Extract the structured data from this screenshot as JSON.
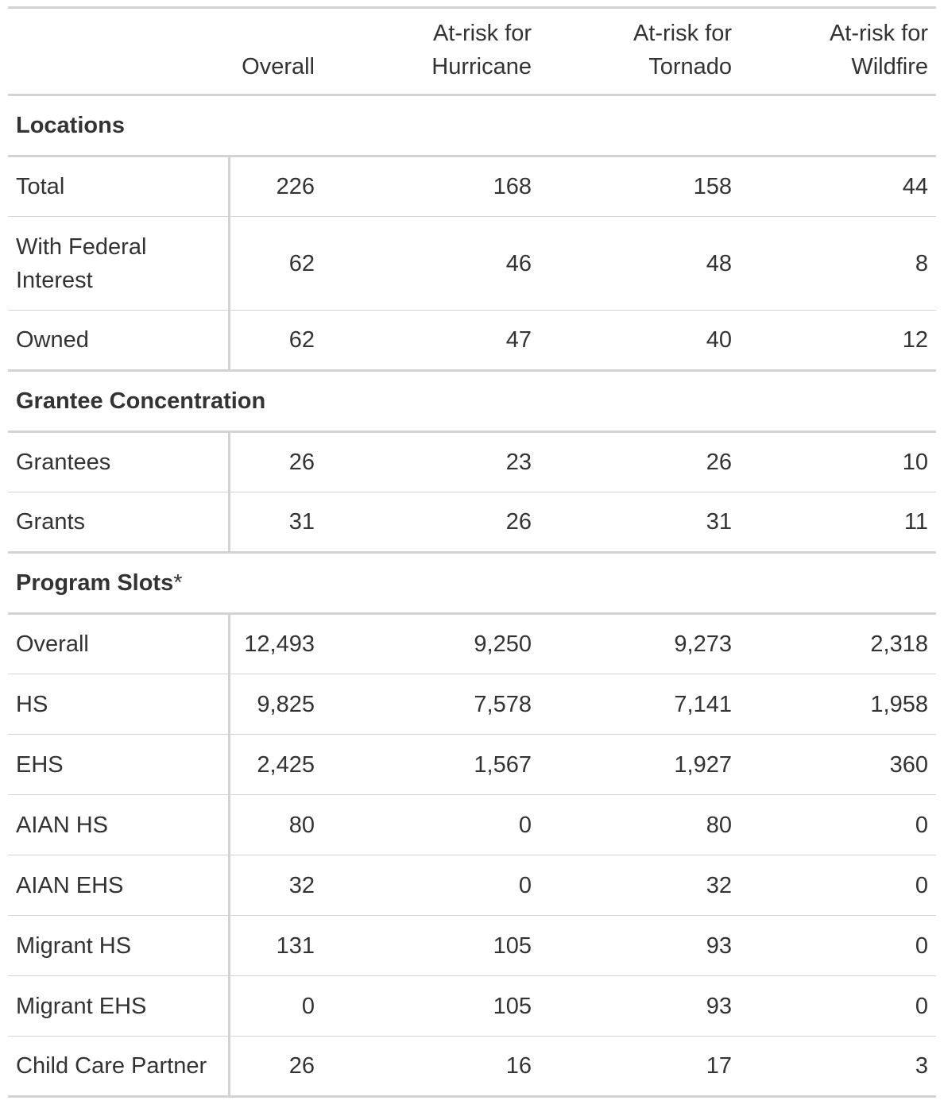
{
  "columns": {
    "stub": "",
    "overall": "Overall",
    "hurricane": [
      "At-risk for",
      "Hurricane"
    ],
    "tornado": [
      "At-risk for",
      "Tornado"
    ],
    "wildfire": [
      "At-risk for",
      "Wildfire"
    ]
  },
  "groups": [
    {
      "title": "Locations",
      "note": "",
      "rows": [
        {
          "label": "Total",
          "values": [
            "226",
            "168",
            "158",
            "44"
          ]
        },
        {
          "label": "With Federal Interest",
          "values": [
            "62",
            "46",
            "48",
            "8"
          ]
        },
        {
          "label": "Owned",
          "values": [
            "62",
            "47",
            "40",
            "12"
          ]
        }
      ]
    },
    {
      "title": "Grantee Concentration",
      "note": "",
      "rows": [
        {
          "label": "Grantees",
          "values": [
            "26",
            "23",
            "26",
            "10"
          ]
        },
        {
          "label": "Grants",
          "values": [
            "31",
            "26",
            "31",
            "11"
          ]
        }
      ]
    },
    {
      "title": "Program Slots",
      "note": "*",
      "rows": [
        {
          "label": "Overall",
          "values": [
            "12,493",
            "9,250",
            "9,273",
            "2,318"
          ]
        },
        {
          "label": "HS",
          "values": [
            "9,825",
            "7,578",
            "7,141",
            "1,958"
          ]
        },
        {
          "label": "EHS",
          "values": [
            "2,425",
            "1,567",
            "1,927",
            "360"
          ]
        },
        {
          "label": "AIAN HS",
          "values": [
            "80",
            "0",
            "80",
            "0"
          ]
        },
        {
          "label": "AIAN EHS",
          "values": [
            "32",
            "0",
            "32",
            "0"
          ]
        },
        {
          "label": "Migrant HS",
          "values": [
            "131",
            "105",
            "93",
            "0"
          ]
        },
        {
          "label": "Migrant EHS",
          "values": [
            "0",
            "105",
            "93",
            "0"
          ]
        },
        {
          "label": "Child Care Partner",
          "values": [
            "26",
            "16",
            "17",
            "3"
          ]
        }
      ]
    }
  ],
  "colors": {
    "text": "#333333",
    "rule": "#d3d3d3",
    "background": "#ffffff"
  }
}
